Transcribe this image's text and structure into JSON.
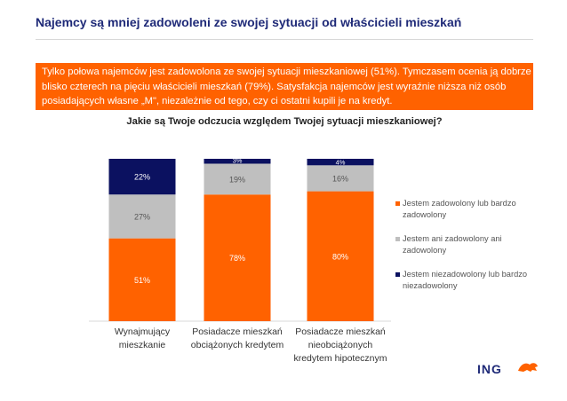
{
  "header": {
    "title": "Najemcy są mniej zadowoleni ze swojej sytuacji od właścicieli mieszkań"
  },
  "summary": {
    "text": "Tylko połowa najemców jest zadowolona ze swojej sytuacji mieszkaniowej (51%). Tymczasem ocenia ją dobrze blisko czterech na pięciu właścicieli mieszkań (79%). Satysfakcja najemców jest wyraźnie niższa niż osób posiadających własne „M\", niezależnie od tego, czy ci ostatni kupili je na kredyt."
  },
  "colors": {
    "accent": "#ff6200",
    "brand_navy": "#1f2a78",
    "gray": "#bfbfbf",
    "navy_series": "#0b1160"
  },
  "chart_data": {
    "type": "bar",
    "stacked": true,
    "title": "Jakie są Twoje odczucia względem Twojej sytuacji mieszkaniowej?",
    "categories": [
      "Wynajmujący mieszkanie",
      "Posiadacze mieszkań obciążonych kredytem",
      "Posiadacze mieszkań nieobciążonych kredytem hipotecznym"
    ],
    "category_label_lines": [
      [
        "Wynajmujący",
        "mieszkanie"
      ],
      [
        "Posiadacze mieszkań",
        "obciążonych kredytem"
      ],
      [
        "Posiadacze mieszkań",
        "nieobciążonych",
        "kredytem hipotecznym"
      ]
    ],
    "series": [
      {
        "name": "Jestem zadowolony lub bardzo zadowolony",
        "values": [
          51,
          78,
          80
        ],
        "labels": [
          "51%",
          "78%",
          "80%"
        ],
        "color": "#ff6200",
        "label_color": "#ffffff"
      },
      {
        "name": "Jestem ani zadowolony ani zadowolony",
        "values": [
          27,
          19,
          16
        ],
        "labels": [
          "27%",
          "19%",
          "16%"
        ],
        "color": "#bfbfbf",
        "label_color": "#555555"
      },
      {
        "name": "Jestem niezadowolony lub bardzo niezadowolony",
        "values": [
          22,
          3,
          4
        ],
        "labels": [
          "22%",
          "3%",
          "4%"
        ],
        "color": "#0b1160",
        "label_color": "#ffffff"
      }
    ],
    "ylim": [
      0,
      100
    ],
    "legend_position": "right",
    "grid": false
  },
  "legend_lines": [
    [
      "Jestem zadowolony lub bardzo",
      "zadowolony"
    ],
    [
      "Jestem ani zadowolony ani",
      "zadowolony"
    ],
    [
      "Jestem niezadowolony lub bardzo",
      "niezadowolony"
    ]
  ],
  "logo": {
    "text": "ING"
  }
}
